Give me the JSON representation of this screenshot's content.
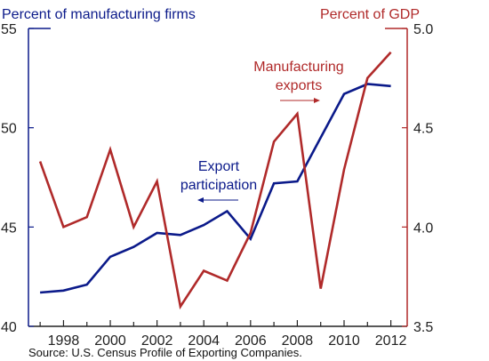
{
  "colors": {
    "left": "#0b1a8a",
    "right": "#b02a2a",
    "axis": "#222222"
  },
  "chart_data": {
    "type": "line",
    "x": [
      1997,
      1998,
      1999,
      2000,
      2001,
      2002,
      2003,
      2004,
      2005,
      2006,
      2007,
      2008,
      2009,
      2010,
      2011,
      2012
    ],
    "x_ticks": [
      1998,
      2000,
      2002,
      2004,
      2006,
      2008,
      2010,
      2012
    ],
    "xlim": [
      1996.5,
      2012.7
    ],
    "y_left": {
      "title": "Percent of manufacturing firms",
      "ylim": [
        40,
        55
      ],
      "ticks": [
        40,
        45,
        50,
        55
      ]
    },
    "y_right": {
      "title": "Percent of GDP",
      "ylim": [
        3.5,
        5.0
      ],
      "ticks": [
        3.5,
        4.0,
        4.5,
        5.0
      ],
      "tick_labels": [
        "3.5",
        "4.0",
        "4.5",
        "5.0"
      ]
    },
    "series": [
      {
        "axis": "left",
        "name": "Export participation",
        "values": [
          41.7,
          41.8,
          42.1,
          43.5,
          44.0,
          44.7,
          44.6,
          45.1,
          45.8,
          44.4,
          47.2,
          47.3,
          49.5,
          51.7,
          52.2,
          52.1
        ]
      },
      {
        "axis": "right",
        "name": "Manufacturing exports",
        "values": [
          4.33,
          4.0,
          4.05,
          4.39,
          4.0,
          4.23,
          3.6,
          3.78,
          3.73,
          3.97,
          4.43,
          4.57,
          3.69,
          4.29,
          4.75,
          4.88
        ]
      }
    ],
    "annotations": {
      "participation": [
        "Export",
        "participation"
      ],
      "exports": [
        "Manufacturing",
        "exports"
      ]
    },
    "source": "Source: U.S. Census Profile of Exporting Companies."
  }
}
